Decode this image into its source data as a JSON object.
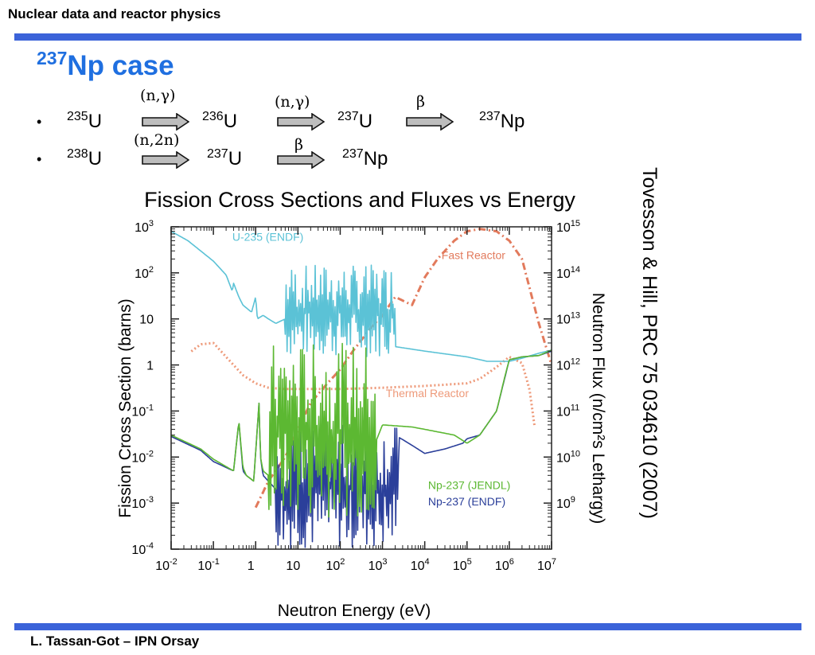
{
  "header": {
    "title": "Nuclear data and reactor physics"
  },
  "title": {
    "sup": "237",
    "text": "Np case"
  },
  "chains": [
    {
      "bullet": "•",
      "nuclides": [
        {
          "sup": "235",
          "el": "U"
        },
        {
          "sup": "236",
          "el": "U"
        },
        {
          "sup": "237",
          "el": "U"
        },
        {
          "sup": "237",
          "el": "Np"
        }
      ],
      "reactions": [
        "(n,γ)",
        "(n,γ)",
        "β"
      ]
    },
    {
      "bullet": "•",
      "nuclides": [
        {
          "sup": "238",
          "el": "U"
        },
        {
          "sup": "237",
          "el": "U"
        },
        {
          "sup": "237",
          "el": "Np"
        }
      ],
      "reactions": [
        "(n,2n)",
        "β"
      ]
    }
  ],
  "citation": "Tovesson & Hill, PRC 75 034610 (2007)",
  "footer": "L. Tassan-Got – IPN Orsay",
  "colors": {
    "accent_bar": "#3b63d9",
    "title": "#1f6fe0",
    "u235": "#5bc2d6",
    "np237_jendl": "#5cb832",
    "np237_endf": "#2b3f9a",
    "fast_reactor": "#e27a5c",
    "thermal_reactor": "#ee9a7a"
  },
  "chart_data": {
    "type": "line",
    "title": "Fission Cross Sections and Fluxes vs Energy",
    "xlabel": "Neutron Energy (eV)",
    "ylabel": "Fission Cross Section (barns)",
    "y2label": "Neutron Flux (n/cm²s Lethargy)",
    "x_scale": "log",
    "y_scale": "log",
    "y2_scale": "log",
    "xlim": [
      0.01,
      10000000
    ],
    "ylim": [
      0.0001,
      1000
    ],
    "y2lim": [
      100000000,
      1000000000000000
    ],
    "x_ticks": [
      {
        "base": "10",
        "exp": "-2",
        "v": 0.01
      },
      {
        "base": "10",
        "exp": "-1",
        "v": 0.1
      },
      {
        "base": "1",
        "exp": "",
        "v": 1
      },
      {
        "base": "10",
        "exp": "",
        "v": 10
      },
      {
        "base": "10",
        "exp": "2",
        "v": 100
      },
      {
        "base": "10",
        "exp": "3",
        "v": 1000
      },
      {
        "base": "10",
        "exp": "4",
        "v": 10000
      },
      {
        "base": "10",
        "exp": "5",
        "v": 100000
      },
      {
        "base": "10",
        "exp": "6",
        "v": 1000000
      },
      {
        "base": "10",
        "exp": "7",
        "v": 10000000
      }
    ],
    "y_ticks": [
      {
        "base": "10",
        "exp": "3",
        "v": 1000
      },
      {
        "base": "10",
        "exp": "2",
        "v": 100
      },
      {
        "base": "10",
        "exp": "",
        "v": 10
      },
      {
        "base": "1",
        "exp": "",
        "v": 1
      },
      {
        "base": "10",
        "exp": "-1",
        "v": 0.1
      },
      {
        "base": "10",
        "exp": "-2",
        "v": 0.01
      },
      {
        "base": "10",
        "exp": "-3",
        "v": 0.001
      },
      {
        "base": "10",
        "exp": "-4",
        "v": 0.0001
      }
    ],
    "y2_ticks": [
      {
        "base": "10",
        "exp": "15",
        "v": 1000000000000000.0
      },
      {
        "base": "10",
        "exp": "14",
        "v": 100000000000000.0
      },
      {
        "base": "10",
        "exp": "13",
        "v": 10000000000000.0
      },
      {
        "base": "10",
        "exp": "12",
        "v": 1000000000000.0
      },
      {
        "base": "10",
        "exp": "11",
        "v": 100000000000.0
      },
      {
        "base": "10",
        "exp": "10",
        "v": 10000000000.0
      },
      {
        "base": "10",
        "exp": "9",
        "v": 1000000000.0
      }
    ],
    "series": [
      {
        "name": "U-235 (ENDF)",
        "axis": "left",
        "style": "solid",
        "color": "#5bc2d6",
        "x": [
          0.01,
          0.025,
          0.05,
          0.1,
          0.2,
          0.28,
          0.3,
          0.4,
          0.5,
          0.8,
          1,
          1.1,
          1.5,
          2,
          3,
          5,
          10,
          20,
          50,
          100,
          200,
          500,
          1000,
          2000,
          10000,
          100000,
          300000,
          1000000,
          2000000,
          5000000,
          10000000
        ],
        "y": [
          800,
          500,
          300,
          180,
          90,
          40,
          60,
          30,
          20,
          14,
          30,
          10,
          12,
          10,
          8,
          10,
          15,
          25,
          40,
          30,
          20,
          8,
          4,
          2.5,
          2,
          1.5,
          1.2,
          1.2,
          1.4,
          1.8,
          2.1
        ],
        "resonance_range": [
          5,
          2000
        ],
        "resonance_band": [
          1.5,
          150
        ]
      },
      {
        "name": "Np-237 (JENDL)",
        "axis": "left",
        "style": "solid",
        "color": "#5cb832",
        "x": [
          0.01,
          0.05,
          0.1,
          0.3,
          0.4,
          0.5,
          0.6,
          0.9,
          1.2,
          1.3,
          1.5,
          2,
          3,
          5,
          10,
          50,
          100,
          500,
          1000,
          5000,
          10000,
          50000,
          100000,
          200000,
          500000,
          800000,
          1000000,
          2000000,
          5000000,
          10000000
        ],
        "y": [
          0.03,
          0.015,
          0.009,
          0.005,
          0.06,
          0.006,
          0.004,
          0.003,
          0.15,
          0.01,
          0.005,
          0.004,
          0.003,
          0.002,
          0.002,
          0.003,
          0.004,
          0.01,
          0.05,
          0.045,
          0.04,
          0.03,
          0.02,
          0.03,
          0.1,
          0.6,
          1.3,
          1.5,
          1.6,
          2.1
        ],
        "resonance_range": [
          2,
          700
        ],
        "resonance_band": [
          0.0005,
          3
        ]
      },
      {
        "name": "Np-237 (ENDF)",
        "axis": "left",
        "style": "solid",
        "color": "#2b3f9a",
        "x": [
          0.01,
          0.05,
          0.1,
          0.3,
          0.4,
          0.5,
          0.6,
          0.9,
          1.2,
          1.3,
          1.5,
          2,
          3,
          5,
          10,
          50,
          100,
          500,
          1000,
          2000,
          5000,
          10000,
          30000,
          80000,
          100000,
          200000,
          500000,
          1000000,
          2000000,
          5000000,
          10000000
        ],
        "y": [
          0.028,
          0.014,
          0.008,
          0.005,
          0.06,
          0.005,
          0.004,
          0.003,
          0.15,
          0.01,
          0.004,
          0.003,
          0.002,
          0.0015,
          0.001,
          0.0008,
          0.0009,
          0.015,
          0.02,
          0.03,
          0.018,
          0.012,
          0.015,
          0.02,
          0.025,
          0.03,
          0.1,
          1.3,
          1.5,
          1.6,
          2
        ],
        "resonance_range": [
          3,
          2500
        ],
        "resonance_band": [
          0.0001,
          0.05
        ]
      },
      {
        "name": "Thermal Reactor",
        "axis": "right",
        "style": "dotted",
        "color": "#ee9a7a",
        "x": [
          0.01,
          0.02,
          0.05,
          0.1,
          0.2,
          0.5,
          1,
          2,
          5,
          10,
          100,
          1000,
          10000,
          100000,
          200000,
          500000,
          1000000,
          2000000,
          3000000,
          5000000,
          10000000
        ],
        "y": [
          800000000000,
          1500000000000,
          2800000000000,
          3000000000000,
          1500000000000,
          600000000000,
          400000000000,
          320000000000,
          300000000000,
          300000000000,
          300000000000,
          320000000000,
          350000000000,
          400000000000,
          500000000000,
          900000000000,
          1500000000000,
          1100000000000,
          300000000000,
          10000000000,
          100000000
        ],
        "visible_from": 0.03,
        "visible_to": 4000000
      },
      {
        "name": "Fast Reactor",
        "axis": "right",
        "style": "dashdot",
        "color": "#e27a5c",
        "x": [
          1,
          2,
          5,
          10,
          20,
          50,
          100,
          200,
          500,
          1000,
          2000,
          5000,
          10000,
          20000,
          50000,
          100000,
          200000,
          500000,
          1000000,
          2000000,
          5000000,
          10000000
        ],
        "y": [
          800000000,
          3000000000,
          10000000000,
          40000000000,
          150000000000,
          400000000000,
          800000000000,
          2000000000000,
          6000000000000,
          12000000000000,
          30000000000000,
          20000000000000,
          80000000000000,
          200000000000000,
          500000000000000,
          800000000000000,
          900000000000000,
          800000000000000,
          500000000000000,
          200000000000000,
          8000000000000,
          1000000000000
        ]
      }
    ],
    "grid": false
  }
}
